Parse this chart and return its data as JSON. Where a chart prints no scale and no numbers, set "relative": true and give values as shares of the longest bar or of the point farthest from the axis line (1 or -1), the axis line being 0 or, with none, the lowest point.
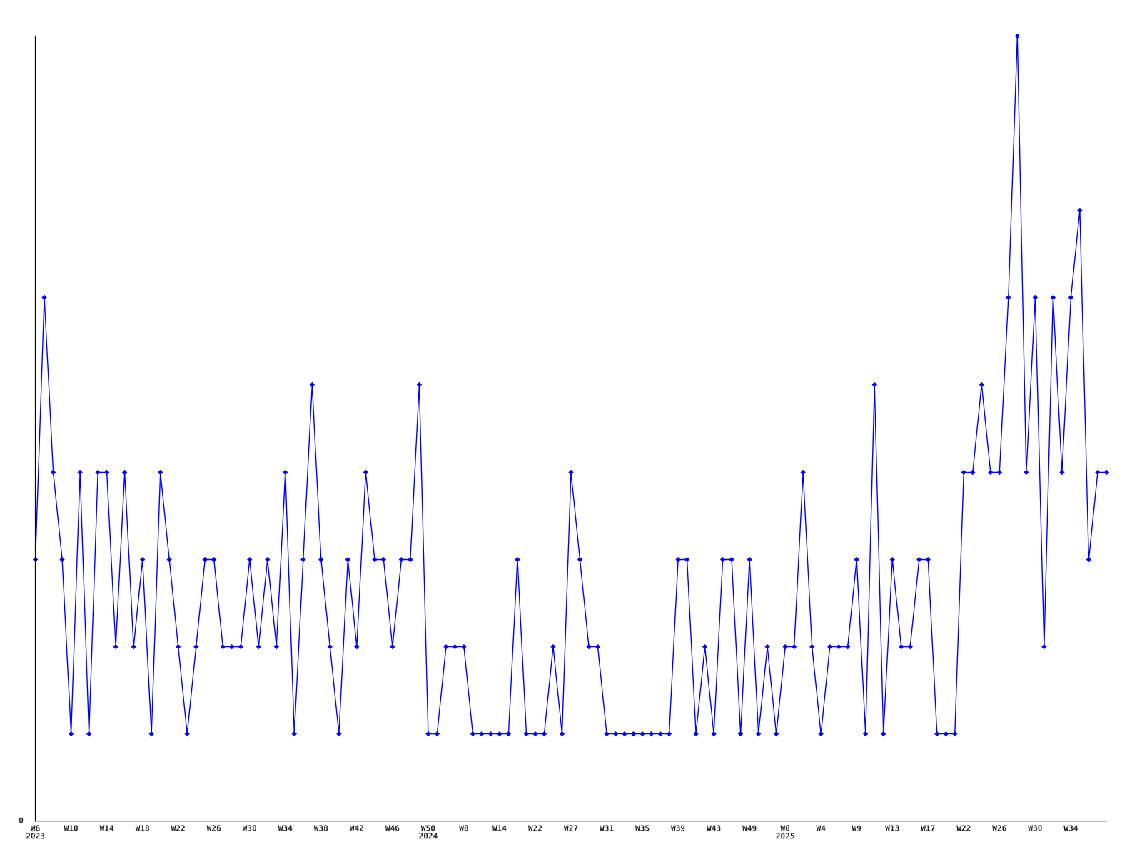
{
  "chart_data": {
    "type": "line",
    "relative": true,
    "categories": [
      "W6\n2023",
      null,
      null,
      null,
      "W10",
      null,
      null,
      null,
      "W14",
      null,
      null,
      null,
      "W18",
      null,
      null,
      null,
      "W22",
      null,
      null,
      null,
      "W26",
      null,
      null,
      null,
      "W30",
      null,
      null,
      null,
      "W34",
      null,
      null,
      null,
      "W38",
      null,
      null,
      null,
      "W42",
      null,
      null,
      null,
      "W46",
      null,
      null,
      null,
      "W50\n2024",
      null,
      null,
      null,
      "W8",
      null,
      null,
      null,
      "W14",
      null,
      null,
      null,
      "W22",
      null,
      null,
      null,
      "W27",
      null,
      null,
      null,
      "W31",
      null,
      null,
      null,
      "W35",
      null,
      null,
      null,
      "W39",
      null,
      null,
      null,
      "W43",
      null,
      null,
      null,
      "W49",
      null,
      null,
      null,
      "W0\n2025",
      null,
      null,
      null,
      "W4",
      null,
      null,
      null,
      "W9",
      null,
      null,
      null,
      "W13",
      null,
      null,
      null,
      "W17",
      null,
      null,
      null,
      "W22",
      null,
      null,
      null,
      "W26",
      null,
      null,
      null,
      "W30",
      null,
      null,
      null,
      "W34",
      null,
      null,
      null,
      null
    ],
    "series": [
      {
        "color": "#0000ff",
        "values": [
          0.333,
          0.667,
          0.444,
          0.333,
          0.111,
          0.444,
          0.111,
          0.444,
          0.444,
          0.222,
          0.444,
          0.222,
          0.333,
          0.111,
          0.444,
          0.333,
          0.222,
          0.111,
          0.222,
          0.333,
          0.333,
          0.222,
          0.222,
          0.222,
          0.333,
          0.222,
          0.333,
          0.222,
          0.444,
          0.111,
          0.333,
          0.556,
          0.333,
          0.222,
          0.111,
          0.333,
          0.222,
          0.444,
          0.333,
          0.333,
          0.222,
          0.333,
          0.333,
          0.556,
          0.111,
          0.111,
          0.222,
          0.222,
          0.222,
          0.111,
          0.111,
          0.111,
          0.111,
          0.111,
          0.333,
          0.111,
          0.111,
          0.111,
          0.222,
          0.111,
          0.444,
          0.333,
          0.222,
          0.222,
          0.111,
          0.111,
          0.111,
          0.111,
          0.111,
          0.111,
          0.111,
          0.111,
          0.333,
          0.333,
          0.111,
          0.222,
          0.111,
          0.333,
          0.333,
          0.111,
          0.333,
          0.111,
          0.222,
          0.111,
          0.222,
          0.222,
          0.444,
          0.222,
          0.111,
          0.222,
          0.222,
          0.222,
          0.333,
          0.111,
          0.556,
          0.111,
          0.333,
          0.222,
          0.222,
          0.333,
          0.333,
          0.111,
          0.111,
          0.111,
          0.444,
          0.444,
          0.556,
          0.444,
          0.444,
          0.667,
          1,
          0.444,
          0.667,
          0.222,
          0.667,
          0.444,
          0.667,
          0.778,
          0.333,
          0.444,
          0.444
        ]
      }
    ],
    "annotations": [
      "0"
    ],
    "marker": "diamond",
    "line_style": "solid",
    "grid": false,
    "legend": false
  }
}
